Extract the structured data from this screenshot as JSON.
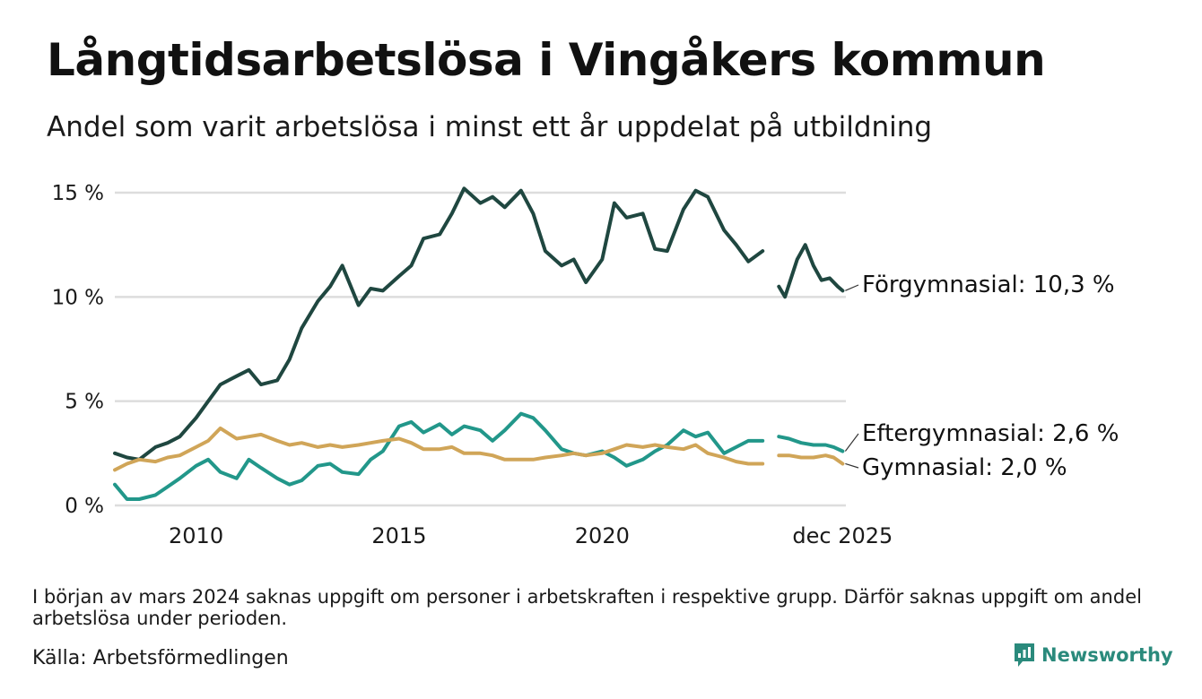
{
  "title": "Långtidsarbetslösa i Vingåkers kommun",
  "subtitle": "Andel som varit arbetslösa i minst ett år uppdelat på utbildning",
  "note": "I början av mars 2024 saknas uppgift om personer i arbetskraften i respektive grupp. Därför saknas uppgift om andel arbetslösa under perioden.",
  "source": "Källa: Arbetsförmedlingen",
  "brand": "Newsworthy",
  "colors": {
    "forgymnasial": "#1f4740",
    "eftergymnasial": "#22978a",
    "gymnasial": "#d0a558",
    "grid": "#dddddd",
    "brand": "#2a8a7c"
  },
  "chart_data": {
    "type": "line",
    "title": "Långtidsarbetslösa i Vingåkers kommun",
    "xlabel": "",
    "ylabel": "",
    "xlim": [
      2008.0,
      2026.0
    ],
    "ylim": [
      0,
      15
    ],
    "yticks": [
      0,
      5,
      10,
      15
    ],
    "ytick_labels": [
      "0 %",
      "5 %",
      "10 %",
      "15 %"
    ],
    "xticks": [
      2010,
      2015,
      2020,
      2025.92
    ],
    "xtick_labels": [
      "2010",
      "2015",
      "2020",
      "dec 2025"
    ],
    "gap": [
      2024.0,
      2024.35
    ],
    "series": [
      {
        "name": "Förgymnasial",
        "end_label": "Förgymnasial: 10,3 %",
        "color_key": "forgymnasial",
        "points": [
          [
            2008.0,
            2.5
          ],
          [
            2008.3,
            2.3
          ],
          [
            2008.6,
            2.2
          ],
          [
            2009.0,
            2.8
          ],
          [
            2009.3,
            3.0
          ],
          [
            2009.6,
            3.3
          ],
          [
            2010.0,
            4.2
          ],
          [
            2010.3,
            5.0
          ],
          [
            2010.6,
            5.8
          ],
          [
            2011.0,
            6.2
          ],
          [
            2011.3,
            6.5
          ],
          [
            2011.6,
            5.8
          ],
          [
            2012.0,
            6.0
          ],
          [
            2012.3,
            7.0
          ],
          [
            2012.6,
            8.5
          ],
          [
            2013.0,
            9.8
          ],
          [
            2013.3,
            10.5
          ],
          [
            2013.6,
            11.5
          ],
          [
            2014.0,
            9.6
          ],
          [
            2014.3,
            10.4
          ],
          [
            2014.6,
            10.3
          ],
          [
            2015.0,
            11.0
          ],
          [
            2015.3,
            11.5
          ],
          [
            2015.6,
            12.8
          ],
          [
            2016.0,
            13.0
          ],
          [
            2016.3,
            14.0
          ],
          [
            2016.6,
            15.2
          ],
          [
            2017.0,
            14.5
          ],
          [
            2017.3,
            14.8
          ],
          [
            2017.6,
            14.3
          ],
          [
            2018.0,
            15.1
          ],
          [
            2018.3,
            14.0
          ],
          [
            2018.6,
            12.2
          ],
          [
            2019.0,
            11.5
          ],
          [
            2019.3,
            11.8
          ],
          [
            2019.6,
            10.7
          ],
          [
            2020.0,
            11.8
          ],
          [
            2020.3,
            14.5
          ],
          [
            2020.6,
            13.8
          ],
          [
            2021.0,
            14.0
          ],
          [
            2021.3,
            12.3
          ],
          [
            2021.6,
            12.2
          ],
          [
            2022.0,
            14.2
          ],
          [
            2022.3,
            15.1
          ],
          [
            2022.6,
            14.8
          ],
          [
            2023.0,
            13.2
          ],
          [
            2023.3,
            12.5
          ],
          [
            2023.6,
            11.7
          ],
          [
            2023.95,
            12.2
          ],
          [
            2024.35,
            10.5
          ],
          [
            2024.5,
            10.0
          ],
          [
            2024.8,
            11.8
          ],
          [
            2025.0,
            12.5
          ],
          [
            2025.2,
            11.5
          ],
          [
            2025.4,
            10.8
          ],
          [
            2025.6,
            10.9
          ],
          [
            2025.8,
            10.5
          ],
          [
            2025.92,
            10.3
          ]
        ]
      },
      {
        "name": "Eftergymnasial",
        "end_label": "Eftergymnasial:  2,6 %",
        "color_key": "eftergymnasial",
        "points": [
          [
            2008.0,
            1.0
          ],
          [
            2008.3,
            0.3
          ],
          [
            2008.6,
            0.3
          ],
          [
            2009.0,
            0.5
          ],
          [
            2009.3,
            0.9
          ],
          [
            2009.6,
            1.3
          ],
          [
            2010.0,
            1.9
          ],
          [
            2010.3,
            2.2
          ],
          [
            2010.6,
            1.6
          ],
          [
            2011.0,
            1.3
          ],
          [
            2011.3,
            2.2
          ],
          [
            2011.6,
            1.8
          ],
          [
            2012.0,
            1.3
          ],
          [
            2012.3,
            1.0
          ],
          [
            2012.6,
            1.2
          ],
          [
            2013.0,
            1.9
          ],
          [
            2013.3,
            2.0
          ],
          [
            2013.6,
            1.6
          ],
          [
            2014.0,
            1.5
          ],
          [
            2014.3,
            2.2
          ],
          [
            2014.6,
            2.6
          ],
          [
            2015.0,
            3.8
          ],
          [
            2015.3,
            4.0
          ],
          [
            2015.6,
            3.5
          ],
          [
            2016.0,
            3.9
          ],
          [
            2016.3,
            3.4
          ],
          [
            2016.6,
            3.8
          ],
          [
            2017.0,
            3.6
          ],
          [
            2017.3,
            3.1
          ],
          [
            2017.6,
            3.6
          ],
          [
            2018.0,
            4.4
          ],
          [
            2018.3,
            4.2
          ],
          [
            2018.6,
            3.6
          ],
          [
            2019.0,
            2.7
          ],
          [
            2019.3,
            2.5
          ],
          [
            2019.6,
            2.4
          ],
          [
            2020.0,
            2.6
          ],
          [
            2020.3,
            2.3
          ],
          [
            2020.6,
            1.9
          ],
          [
            2021.0,
            2.2
          ],
          [
            2021.3,
            2.6
          ],
          [
            2021.6,
            2.9
          ],
          [
            2022.0,
            3.6
          ],
          [
            2022.3,
            3.3
          ],
          [
            2022.6,
            3.5
          ],
          [
            2023.0,
            2.5
          ],
          [
            2023.3,
            2.8
          ],
          [
            2023.6,
            3.1
          ],
          [
            2023.95,
            3.1
          ],
          [
            2024.35,
            3.3
          ],
          [
            2024.6,
            3.2
          ],
          [
            2024.9,
            3.0
          ],
          [
            2025.2,
            2.9
          ],
          [
            2025.5,
            2.9
          ],
          [
            2025.7,
            2.8
          ],
          [
            2025.92,
            2.6
          ]
        ]
      },
      {
        "name": "Gymnasial",
        "end_label": "Gymnasial:  2,0 %",
        "color_key": "gymnasial",
        "points": [
          [
            2008.0,
            1.7
          ],
          [
            2008.3,
            2.0
          ],
          [
            2008.6,
            2.2
          ],
          [
            2009.0,
            2.1
          ],
          [
            2009.3,
            2.3
          ],
          [
            2009.6,
            2.4
          ],
          [
            2010.0,
            2.8
          ],
          [
            2010.3,
            3.1
          ],
          [
            2010.6,
            3.7
          ],
          [
            2011.0,
            3.2
          ],
          [
            2011.3,
            3.3
          ],
          [
            2011.6,
            3.4
          ],
          [
            2012.0,
            3.1
          ],
          [
            2012.3,
            2.9
          ],
          [
            2012.6,
            3.0
          ],
          [
            2013.0,
            2.8
          ],
          [
            2013.3,
            2.9
          ],
          [
            2013.6,
            2.8
          ],
          [
            2014.0,
            2.9
          ],
          [
            2014.3,
            3.0
          ],
          [
            2014.6,
            3.1
          ],
          [
            2015.0,
            3.2
          ],
          [
            2015.3,
            3.0
          ],
          [
            2015.6,
            2.7
          ],
          [
            2016.0,
            2.7
          ],
          [
            2016.3,
            2.8
          ],
          [
            2016.6,
            2.5
          ],
          [
            2017.0,
            2.5
          ],
          [
            2017.3,
            2.4
          ],
          [
            2017.6,
            2.2
          ],
          [
            2018.0,
            2.2
          ],
          [
            2018.3,
            2.2
          ],
          [
            2018.6,
            2.3
          ],
          [
            2019.0,
            2.4
          ],
          [
            2019.3,
            2.5
          ],
          [
            2019.6,
            2.4
          ],
          [
            2020.0,
            2.5
          ],
          [
            2020.3,
            2.7
          ],
          [
            2020.6,
            2.9
          ],
          [
            2021.0,
            2.8
          ],
          [
            2021.3,
            2.9
          ],
          [
            2021.6,
            2.8
          ],
          [
            2022.0,
            2.7
          ],
          [
            2022.3,
            2.9
          ],
          [
            2022.6,
            2.5
          ],
          [
            2023.0,
            2.3
          ],
          [
            2023.3,
            2.1
          ],
          [
            2023.6,
            2.0
          ],
          [
            2023.95,
            2.0
          ],
          [
            2024.35,
            2.4
          ],
          [
            2024.6,
            2.4
          ],
          [
            2024.9,
            2.3
          ],
          [
            2025.2,
            2.3
          ],
          [
            2025.5,
            2.4
          ],
          [
            2025.7,
            2.3
          ],
          [
            2025.92,
            2.0
          ]
        ]
      }
    ]
  }
}
